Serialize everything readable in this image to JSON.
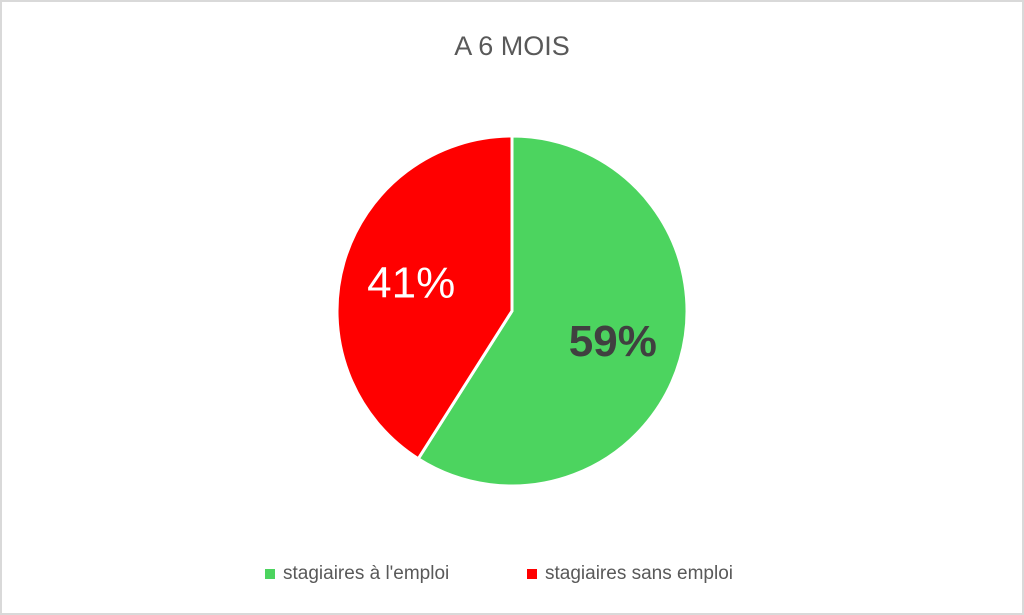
{
  "chart_data": {
    "type": "pie",
    "title": "A 6 MOIS",
    "categories": [
      "stagiaires à l'emploi",
      "stagiaires sans emploi"
    ],
    "values": [
      59,
      41
    ],
    "value_labels": [
      "59%",
      "41%"
    ],
    "colors": [
      "#4cd45f",
      "#ff0000"
    ],
    "legend": "bottom"
  }
}
